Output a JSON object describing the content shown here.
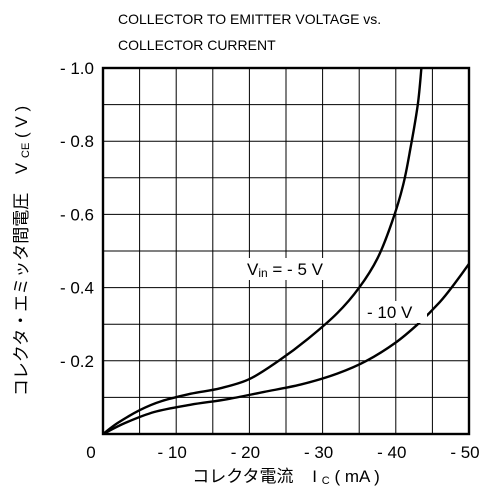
{
  "chart_data": {
    "type": "line",
    "title_lines": [
      "COLLECTOR TO EMITTER VOLTAGE vs.",
      "COLLECTOR CURRENT"
    ],
    "xlabel": {
      "main": "コレクタ電流",
      "symbol": "I",
      "sub": "C",
      "unit": " ( mA )"
    },
    "ylabel": {
      "main": "コレクタ・エミッタ間電圧",
      "symbol": "V",
      "sub": "CE",
      "unit": " ( V )"
    },
    "x_ticks": [
      {
        "value": 0,
        "label": "0"
      },
      {
        "value": -10,
        "label": "- 10"
      },
      {
        "value": -20,
        "label": "- 20"
      },
      {
        "value": -30,
        "label": "- 30"
      },
      {
        "value": -40,
        "label": "- 40"
      },
      {
        "value": -50,
        "label": "- 50"
      }
    ],
    "y_ticks": [
      {
        "value": -0.2,
        "label": "- 0.2"
      },
      {
        "value": -0.4,
        "label": "- 0.4"
      },
      {
        "value": -0.6,
        "label": "- 0.6"
      },
      {
        "value": -0.8,
        "label": "- 0.8"
      },
      {
        "value": -1.0,
        "label": "- 1.0"
      }
    ],
    "xlim": [
      0,
      -50
    ],
    "ylim": [
      0,
      -1.0
    ],
    "grid": true,
    "x_minor_step": -5,
    "y_minor_step": -0.1,
    "series": [
      {
        "name": "- 5 V",
        "label": {
          "prefix": "V",
          "sub": "in",
          "text": " =   - 5 V"
        },
        "points": [
          [
            0,
            0
          ],
          [
            -2,
            -0.03
          ],
          [
            -5,
            -0.065
          ],
          [
            -8,
            -0.09
          ],
          [
            -12,
            -0.11
          ],
          [
            -16,
            -0.125
          ],
          [
            -20,
            -0.15
          ],
          [
            -24,
            -0.2
          ],
          [
            -28,
            -0.26
          ],
          [
            -32,
            -0.33
          ],
          [
            -35,
            -0.4
          ],
          [
            -37.5,
            -0.48
          ],
          [
            -39.5,
            -0.58
          ],
          [
            -41,
            -0.68
          ],
          [
            -42,
            -0.78
          ],
          [
            -43,
            -0.9
          ],
          [
            -43.5,
            -1.0
          ]
        ]
      },
      {
        "name": "- 10 V",
        "label": {
          "text": "- 10 V"
        },
        "points": [
          [
            0,
            0
          ],
          [
            -3,
            -0.03
          ],
          [
            -7,
            -0.06
          ],
          [
            -12,
            -0.08
          ],
          [
            -17,
            -0.095
          ],
          [
            -22,
            -0.115
          ],
          [
            -27,
            -0.135
          ],
          [
            -32,
            -0.165
          ],
          [
            -36,
            -0.2
          ],
          [
            -40,
            -0.25
          ],
          [
            -43,
            -0.3
          ],
          [
            -46,
            -0.36
          ],
          [
            -48,
            -0.41
          ],
          [
            -50,
            -0.465
          ]
        ]
      }
    ]
  }
}
